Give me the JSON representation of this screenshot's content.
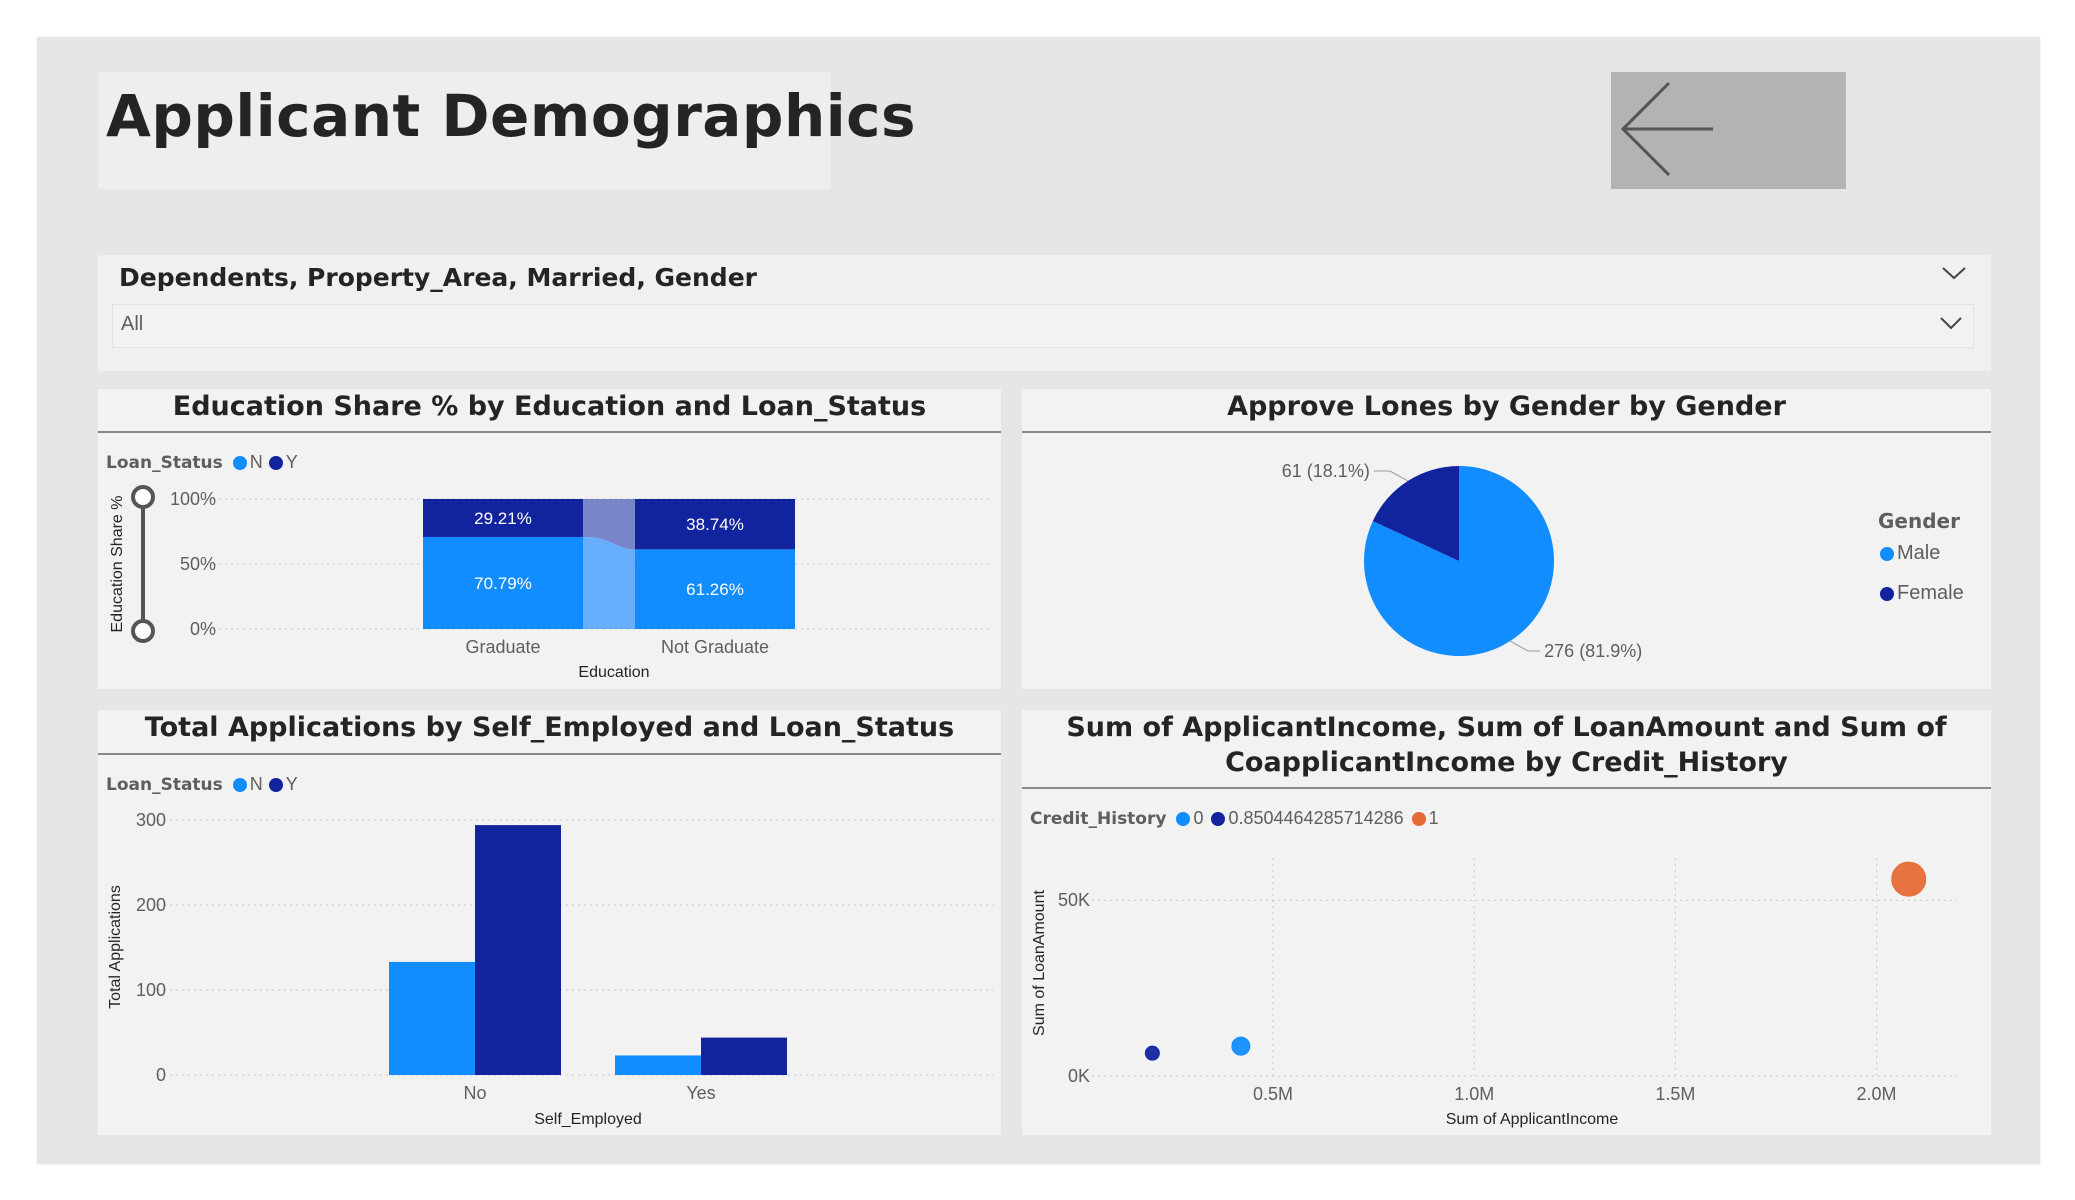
{
  "page": {
    "title": "Applicant Demographics",
    "back_button_icon": "arrow-left-icon"
  },
  "slicer": {
    "title": "Dependents, Property_Area, Married, Gender",
    "value": "All"
  },
  "colors": {
    "canvas_bg": "#e6e6e6",
    "panel_bg": "#f2f2f2",
    "light_blue": "#118dff",
    "dark_blue": "#12239e",
    "orange": "#e66c37",
    "back_button_bg": "#b3b3b3"
  },
  "charts": {
    "education": {
      "title": "Education Share % by Education and Loan_Status",
      "legend_title": "Loan_Status",
      "legend": [
        "N",
        "Y"
      ]
    },
    "gender": {
      "title": "Approve Lones by Gender by Gender",
      "legend_title": "Gender",
      "legend": [
        "Male",
        "Female"
      ]
    },
    "self_employed": {
      "title": "Total Applications by Self_Employed and Loan_Status",
      "legend_title": "Loan_Status",
      "legend": [
        "N",
        "Y"
      ]
    },
    "income": {
      "title_line1": "Sum of ApplicantIncome, Sum of LoanAmount and Sum of",
      "title_line2": "CoapplicantIncome by Credit_History",
      "legend_title": "Credit_History",
      "legend": [
        "0",
        "0.8504464285714286",
        "1"
      ]
    }
  },
  "chart_data": [
    {
      "type": "bar",
      "subtype": "100% stacked ribbon",
      "title": "Education Share % by Education and Loan_Status",
      "categories": [
        "Graduate",
        "Not Graduate"
      ],
      "series": [
        {
          "name": "N",
          "values": [
            70.79,
            61.26
          ],
          "labels": [
            "70.79%",
            "61.26%"
          ],
          "color": "#118dff"
        },
        {
          "name": "Y",
          "values": [
            29.21,
            38.74
          ],
          "labels": [
            "29.21%",
            "38.74%"
          ],
          "color": "#12239e"
        }
      ],
      "xlabel": "Education",
      "ylabel": "Education Share %",
      "yticks": [
        "0%",
        "50%",
        "100%"
      ],
      "ylim": [
        0,
        100
      ],
      "legend_title": "Loan_Status",
      "legend_position": "top-left",
      "grid": true
    },
    {
      "type": "pie",
      "title": "Approve Lones by Gender by Gender",
      "slices": [
        {
          "name": "Male",
          "value": 276,
          "label": "276 (81.9%)",
          "color": "#118dff"
        },
        {
          "name": "Female",
          "value": 61,
          "label": "61 (18.1%)",
          "color": "#12239e"
        }
      ],
      "legend_title": "Gender",
      "legend_position": "right"
    },
    {
      "type": "bar",
      "subtype": "clustered",
      "title": "Total Applications by Self_Employed and Loan_Status",
      "categories": [
        "No",
        "Yes"
      ],
      "series": [
        {
          "name": "N",
          "values": [
            133,
            23
          ],
          "color": "#118dff"
        },
        {
          "name": "Y",
          "values": [
            294,
            44
          ],
          "color": "#12239e"
        }
      ],
      "xlabel": "Self_Employed",
      "ylabel": "Total Applications",
      "yticks": [
        "0",
        "100",
        "200",
        "300"
      ],
      "ylim": [
        0,
        300
      ],
      "legend_title": "Loan_Status",
      "legend_position": "top-left",
      "grid": true
    },
    {
      "type": "scatter",
      "title": "Sum of ApplicantIncome, Sum of LoanAmount and Sum of CoapplicantIncome by Credit_History",
      "series": [
        {
          "name": "0",
          "points": [
            {
              "x": 0.42,
              "y": 8500
            }
          ],
          "size": 9,
          "color": "#118dff"
        },
        {
          "name": "0.8504464285714286",
          "points": [
            {
              "x": 0.2,
              "y": 6500
            }
          ],
          "size": 7,
          "color": "#12239e"
        },
        {
          "name": "1",
          "points": [
            {
              "x": 2.08,
              "y": 56000
            }
          ],
          "size": 17,
          "color": "#e66c37"
        }
      ],
      "xlabel": "Sum of ApplicantIncome",
      "ylabel": "Sum of LoanAmount",
      "xticks": [
        "0.5M",
        "1.0M",
        "1.5M",
        "2.0M"
      ],
      "yticks": [
        "0K",
        "50K"
      ],
      "xlim": [
        0.05,
        2.2
      ],
      "ylim": [
        0,
        62000
      ],
      "x_unit": "M",
      "legend_title": "Credit_History",
      "legend_position": "top-left",
      "grid": true
    }
  ]
}
